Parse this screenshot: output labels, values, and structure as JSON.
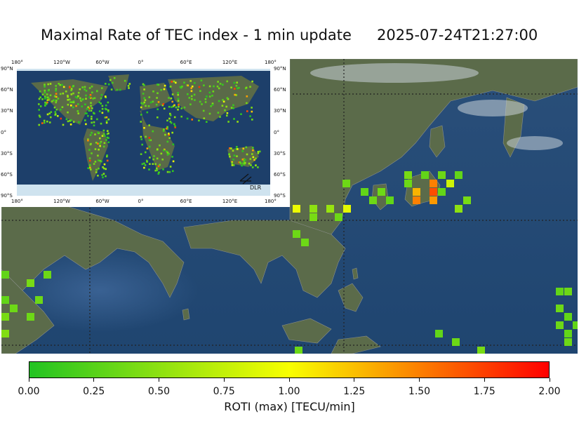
{
  "header": {
    "title": "Maximal Rate of TEC index - 1 min update",
    "timestamp": "2025-07-24T21:27:00"
  },
  "inset": {
    "lon_labels": [
      "180°",
      "120°W",
      "60°W",
      "0°",
      "60°E",
      "120°E",
      "180°"
    ],
    "lat_labels": [
      "90°N",
      "60°N",
      "30°N",
      "0°",
      "30°S",
      "60°S",
      "90°S"
    ],
    "logo_text": "DLR"
  },
  "colorbar": {
    "label": "ROTI (max) [TECU/min]",
    "ticks": [
      "0.00",
      "0.25",
      "0.50",
      "0.75",
      "1.00",
      "1.25",
      "1.50",
      "1.75",
      "2.00"
    ],
    "range": [
      0,
      2
    ],
    "colors": [
      "#22c322",
      "#f8ff00",
      "#ff0000"
    ]
  },
  "palette": {
    "ocean": "#1f4570",
    "land": "#5a6a48",
    "grid": "#222222"
  }
}
